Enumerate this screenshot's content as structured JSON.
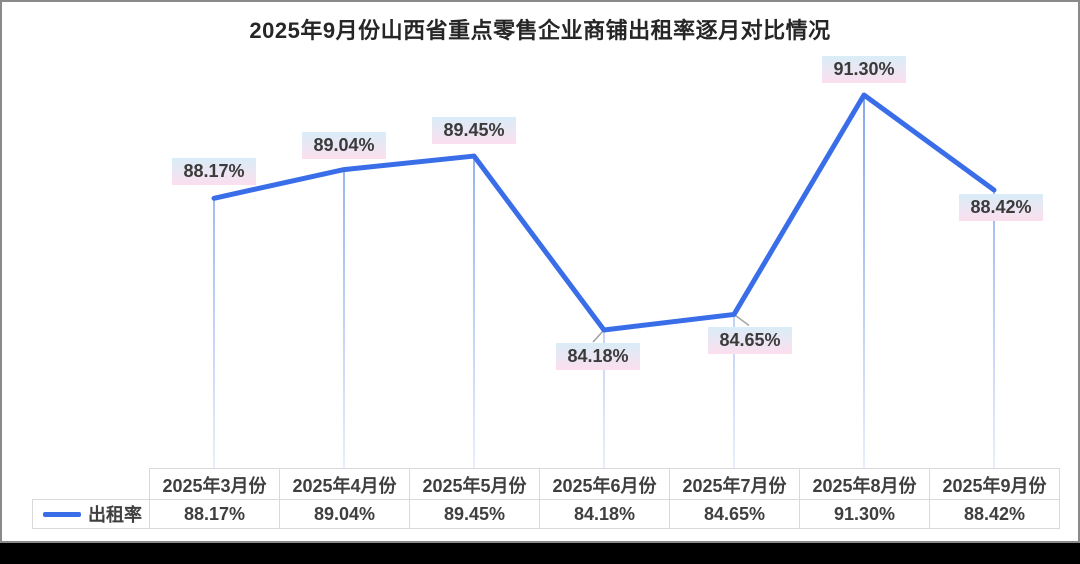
{
  "title": "2025年9月份山西省重点零售企业商铺出租率逐月对比情况",
  "legend": {
    "series_label": "出租率"
  },
  "chart_data": {
    "type": "line",
    "title": "2025年9月份山西省重点零售企业商铺出租率逐月对比情况",
    "categories": [
      "2025年3月份",
      "2025年4月份",
      "2025年5月份",
      "2025年6月份",
      "2025年7月份",
      "2025年8月份",
      "2025年9月份"
    ],
    "series": [
      {
        "name": "出租率",
        "values": [
          88.17,
          89.04,
          89.45,
          84.18,
          84.65,
          91.3,
          88.42
        ]
      }
    ],
    "data_labels": [
      "88.17%",
      "89.04%",
      "89.45%",
      "84.18%",
      "84.65%",
      "91.30%",
      "88.42%"
    ],
    "xlabel": "",
    "ylabel": "",
    "ylim": [
      80,
      92.5
    ],
    "grid": false,
    "legend_position": "bottom-left data-table",
    "data_table_shown": true
  },
  "table": {
    "headers": [
      "2025年3月份",
      "2025年4月份",
      "2025年5月份",
      "2025年6月份",
      "2025年7月份",
      "2025年8月份",
      "2025年9月份"
    ],
    "row_label": "出租率",
    "values": [
      "88.17%",
      "89.04%",
      "89.45%",
      "84.18%",
      "84.65%",
      "91.30%",
      "88.42%"
    ]
  },
  "colors": {
    "line": "#3a6ee8",
    "drop_line_top": "#86a7ee",
    "drop_line_bottom": "#e8eefb",
    "leader_line": "#a0a0a0",
    "label_bg_top": "#d9edf8",
    "label_bg_bottom": "#fcdfee",
    "label_text": "#3b3b3b",
    "table_border": "#d9d9d9",
    "table_text": "#3f3f3f",
    "title_text": "#262626",
    "frame_border": "#8a8a8a",
    "background": "#ffffff",
    "bottom_bar": "#000000"
  }
}
